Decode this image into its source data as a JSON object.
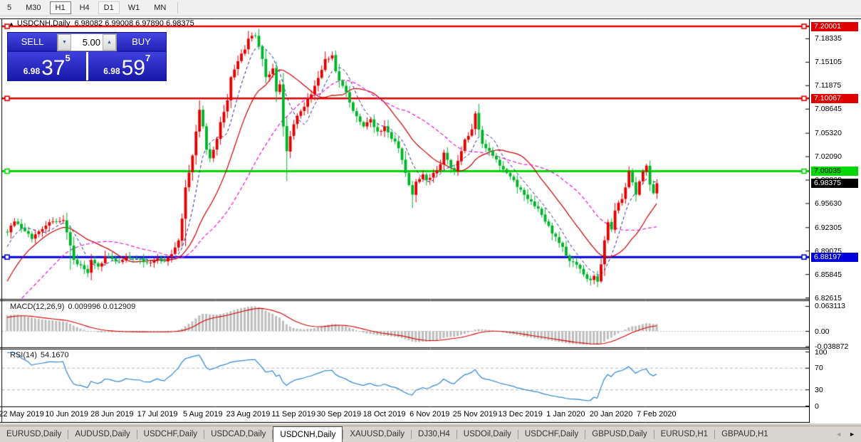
{
  "toolbar": {
    "timeframes": [
      {
        "label": "5"
      },
      {
        "label": "M30"
      },
      {
        "label": "H1"
      },
      {
        "label": "H4"
      },
      {
        "label": "D1"
      },
      {
        "label": "W1"
      },
      {
        "label": "MN"
      }
    ]
  },
  "chart": {
    "marker_icon": "▲",
    "title_symbol": "USDCNH,Daily",
    "title_ohlc": "6.98082 6.99008 6.97890 6.98375",
    "trade_panel": {
      "sell_label": "SELL",
      "buy_label": "BUY",
      "volume": "5.00",
      "down_icon": "▼",
      "up_icon": "▲",
      "sell_price": {
        "prefix": "6.98",
        "big": "37",
        "sup": "5"
      },
      "buy_price": {
        "prefix": "6.98",
        "big": "59",
        "sup": "7"
      }
    },
    "price_axis_ticks": [
      "7.18335",
      "7.15105",
      "7.11875",
      "7.08645",
      "7.05320",
      "7.02090",
      "6.98860",
      "6.95630",
      "6.92305",
      "6.89075",
      "6.85845",
      "6.82615"
    ],
    "hlines": [
      {
        "value": 7.20001,
        "label": "7.20001",
        "color": "#e00000",
        "text": "#ffffff",
        "width": 2.5
      },
      {
        "value": 7.10067,
        "label": "7.10067",
        "color": "#e00000",
        "text": "#ffffff",
        "width": 2.5
      },
      {
        "value": 7.00035,
        "label": "7.00035",
        "color": "#00d800",
        "text": "#000000",
        "width": 3
      },
      {
        "value": 6.88197,
        "label": "6.88197",
        "color": "#0000dd",
        "text": "#ffffff",
        "width": 3
      }
    ],
    "current_price": {
      "value": 6.98375,
      "label": "6.98375",
      "badge_bg": "#000000",
      "badge_text": "#ffffff"
    },
    "time_axis": [
      "22 May 2019",
      "10 Jun 2019",
      "28 Jun 2019",
      "17 Jul 2019",
      "5 Aug 2019",
      "23 Aug 2019",
      "11 Sep 2019",
      "30 Sep 2019",
      "18 Oct 2019",
      "6 Nov 2019",
      "25 Nov 2019",
      "13 Dec 2019",
      "1 Jan 2020",
      "20 Jan 2020",
      "7 Feb 2020"
    ],
    "candles": {
      "bull_color": "#e30000",
      "bear_color": "#00b428",
      "waypoints": [
        [
          0,
          6.916
        ],
        [
          2,
          6.931
        ],
        [
          4,
          6.921
        ],
        [
          7,
          6.907
        ],
        [
          9,
          6.917
        ],
        [
          13,
          6.931
        ],
        [
          16,
          6.933
        ],
        [
          18,
          6.898
        ],
        [
          19,
          6.878
        ],
        [
          23,
          6.86
        ],
        [
          24,
          6.878
        ],
        [
          26,
          6.869
        ],
        [
          28,
          6.883
        ],
        [
          31,
          6.876
        ],
        [
          35,
          6.881
        ],
        [
          39,
          6.875
        ],
        [
          43,
          6.88
        ],
        [
          45,
          6.876
        ],
        [
          47,
          6.886
        ],
        [
          49,
          6.905
        ],
        [
          50,
          6.935
        ],
        [
          51,
          6.978
        ],
        [
          53,
          7.022
        ],
        [
          54,
          7.055
        ],
        [
          55,
          7.085
        ],
        [
          56,
          7.062
        ],
        [
          57,
          7.03
        ],
        [
          58,
          7.018
        ],
        [
          60,
          7.045
        ],
        [
          61,
          7.068
        ],
        [
          63,
          7.098
        ],
        [
          64,
          7.13
        ],
        [
          66,
          7.152
        ],
        [
          68,
          7.168
        ],
        [
          69,
          7.183
        ],
        [
          71,
          7.187
        ],
        [
          72,
          7.172
        ],
        [
          73,
          7.155
        ],
        [
          74,
          7.13
        ],
        [
          76,
          7.142
        ],
        [
          77,
          7.11
        ],
        [
          78,
          7.12
        ],
        [
          79,
          7.062
        ],
        [
          80,
          7.028
        ],
        [
          82,
          7.065
        ],
        [
          84,
          7.083
        ],
        [
          86,
          7.1
        ],
        [
          88,
          7.118
        ],
        [
          90,
          7.14
        ],
        [
          91,
          7.155
        ],
        [
          93,
          7.16
        ],
        [
          94,
          7.138
        ],
        [
          96,
          7.118
        ],
        [
          98,
          7.095
        ],
        [
          100,
          7.076
        ],
        [
          102,
          7.062
        ],
        [
          104,
          7.072
        ],
        [
          106,
          7.055
        ],
        [
          108,
          7.062
        ],
        [
          110,
          7.045
        ],
        [
          112,
          7.032
        ],
        [
          114,
          6.998
        ],
        [
          116,
          6.968
        ],
        [
          117,
          6.986
        ],
        [
          119,
          6.996
        ],
        [
          120,
          6.988
        ],
        [
          122,
          6.998
        ],
        [
          124,
          7.01
        ],
        [
          125,
          7.026
        ],
        [
          127,
          7.005
        ],
        [
          128,
          7.0
        ],
        [
          130,
          7.028
        ],
        [
          131,
          7.044
        ],
        [
          133,
          7.058
        ],
        [
          134,
          7.08
        ],
        [
          136,
          7.038
        ],
        [
          137,
          7.032
        ],
        [
          139,
          7.022
        ],
        [
          141,
          7.008
        ],
        [
          143,
          6.998
        ],
        [
          145,
          6.988
        ],
        [
          147,
          6.975
        ],
        [
          149,
          6.962
        ],
        [
          151,
          6.952
        ],
        [
          153,
          6.94
        ],
        [
          155,
          6.925
        ],
        [
          157,
          6.91
        ],
        [
          159,
          6.896
        ],
        [
          160,
          6.884
        ],
        [
          162,
          6.875
        ],
        [
          164,
          6.866
        ],
        [
          165,
          6.858
        ],
        [
          167,
          6.85
        ],
        [
          168,
          6.856
        ],
        [
          169,
          6.848
        ],
        [
          170,
          6.872
        ],
        [
          171,
          6.905
        ],
        [
          172,
          6.93
        ],
        [
          173,
          6.92
        ],
        [
          174,
          6.946
        ],
        [
          176,
          6.962
        ],
        [
          177,
          6.978
        ],
        [
          178,
          7.0
        ],
        [
          179,
          6.985
        ],
        [
          180,
          6.968
        ],
        [
          182,
          7.0
        ],
        [
          183,
          7.008
        ],
        [
          184,
          6.982
        ],
        [
          185,
          6.97
        ],
        [
          186,
          6.98375
        ]
      ],
      "wick_overrides": [
        {
          "i": 71,
          "h": 7.1915
        },
        {
          "i": 80,
          "l": 6.987
        },
        {
          "i": 51,
          "l": 6.897
        },
        {
          "i": 18,
          "l": 6.8645
        },
        {
          "i": 23,
          "l": 6.854
        },
        {
          "i": 116,
          "l": 6.9495
        },
        {
          "i": 169,
          "l": 6.8405
        }
      ]
    },
    "ma_lines": [
      {
        "name": "fast-ma",
        "color": "#2222aa",
        "period": 7,
        "dash": [
          4,
          3
        ],
        "width": 1
      },
      {
        "name": "mid-ma",
        "color": "#cc0000",
        "period": 18,
        "dash": [],
        "width": 1.2
      },
      {
        "name": "slow-ma",
        "color": "#e818d8",
        "period": 34,
        "dash": [
          5,
          3
        ],
        "width": 1.2
      }
    ]
  },
  "macd": {
    "label": "MACD(12,26,9)",
    "values": "0.009996 0.012909",
    "axis": [
      "0.063113",
      "0.00",
      "-0.038872"
    ],
    "axis_values": [
      0.063113,
      0,
      -0.038872
    ],
    "hist_color": "#bdbdbd",
    "signal_color": "#d40000"
  },
  "rsi": {
    "label": "RSI(14)",
    "value": "54.1670",
    "axis": [
      "100",
      "70",
      "30",
      "0"
    ],
    "axis_values": [
      100,
      70,
      30,
      0
    ],
    "levels": [
      70,
      30
    ],
    "line_color": "#2f86d2"
  },
  "tabs": {
    "scroll_left": "◄",
    "scroll_right": "►",
    "items": [
      {
        "label": "EURUSD,Daily",
        "active": false
      },
      {
        "label": "AUDUSD,Daily",
        "active": false
      },
      {
        "label": "USDCHF,Daily",
        "active": false
      },
      {
        "label": "USDCAD,Daily",
        "active": false
      },
      {
        "label": "USDCNH,Daily",
        "active": true
      },
      {
        "label": "XAUUSD,Daily",
        "active": false
      },
      {
        "label": "DJ30,H4",
        "active": false
      },
      {
        "label": "USDOil,Daily",
        "active": false
      },
      {
        "label": "USDCHF,Daily",
        "active": false
      },
      {
        "label": "GBPUSD,Daily",
        "active": false
      },
      {
        "label": "EURUSD,H1",
        "active": false
      },
      {
        "label": "GBPAUD,H1",
        "active": false
      }
    ]
  }
}
